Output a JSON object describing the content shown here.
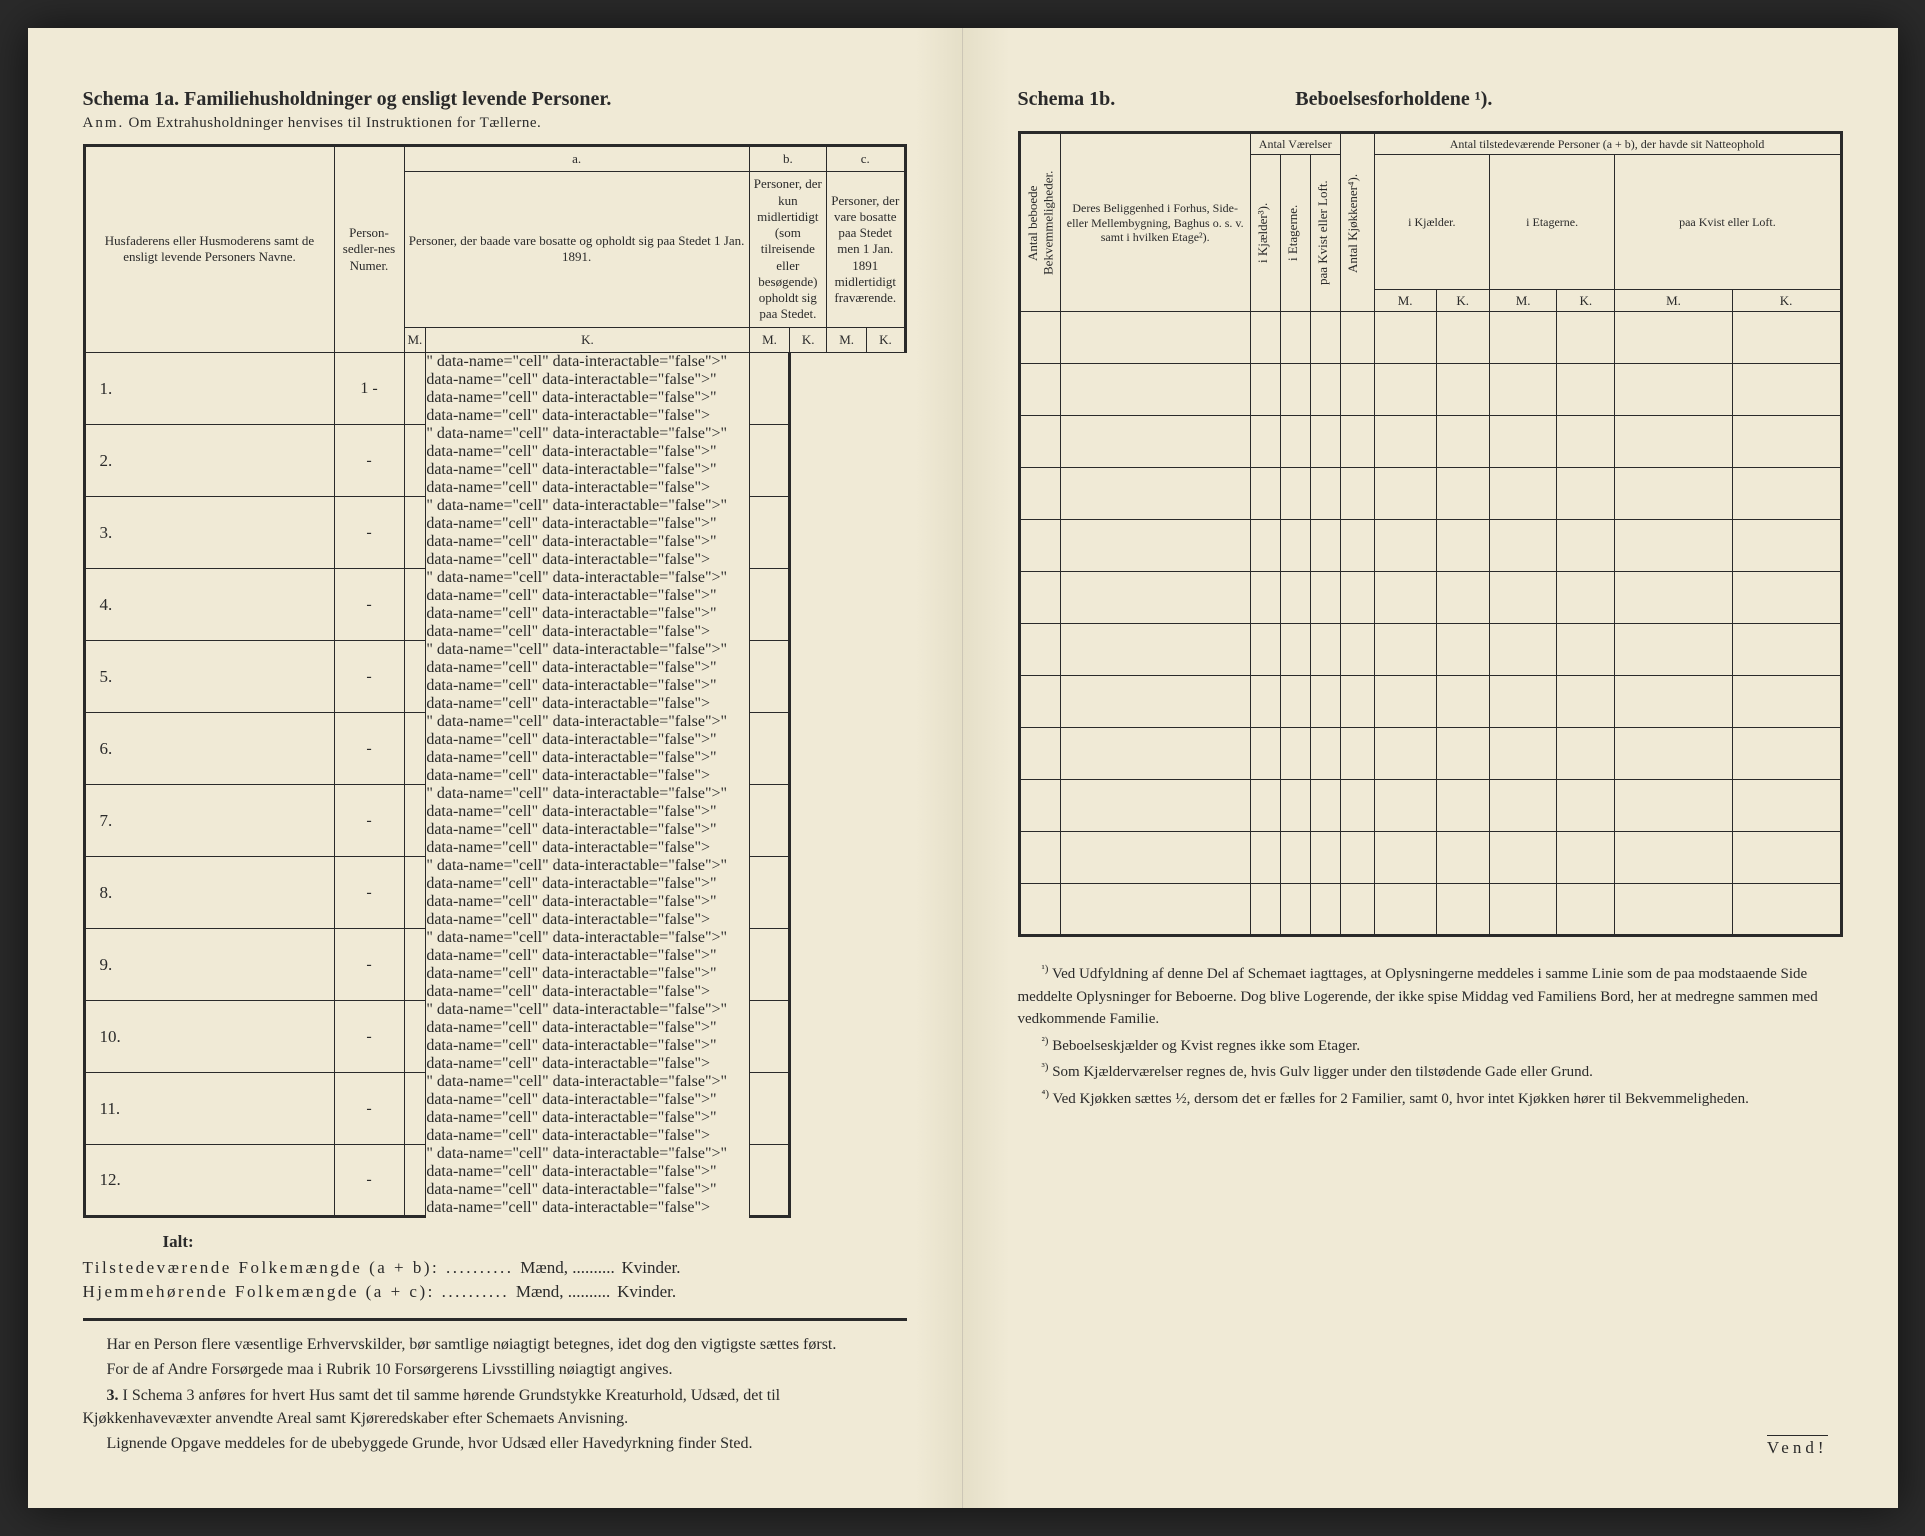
{
  "left": {
    "title": "Schema 1a.   Familiehusholdninger og ensligt levende Personer.",
    "note_label": "Anm.",
    "note": "Om Extrahusholdninger henvises til Instruktionen for Tællerne.",
    "col_names": "Husfaderens eller Husmoderens samt de ensligt levende Personers Navne.",
    "col_numer": "Person-sedler-nes Numer.",
    "abc": {
      "a": "a.",
      "b": "b.",
      "c": "c.",
      "a_text": "Personer, der baade vare bosatte og opholdt sig paa Stedet 1 Jan. 1891.",
      "b_text": "Personer, der kun midlertidigt (som tilreisende eller besøgende) opholdt sig paa Stedet.",
      "c_text": "Personer, der vare bosatte paa Stedet men 1 Jan. 1891 midlertidigt fraværende."
    },
    "M": "M.",
    "K": "K.",
    "rows": [
      "1.",
      "2.",
      "3.",
      "4.",
      "5.",
      "6.",
      "7.",
      "8.",
      "9.",
      "10.",
      "11.",
      "12."
    ],
    "first_numer": "1 -",
    "dash": "-",
    "ialt_label": "Ialt:",
    "ialt_line1_a": "Tilstedeværende Folkemængde (a + b): ..........",
    "ialt_line1_b": "Mænd, ..........",
    "ialt_line1_c": "Kvinder.",
    "ialt_line2_a": "Hjemmehørende Folkemængde (a + c): ..........",
    "ialt_line2_b": "Mænd, ..........",
    "ialt_line2_c": "Kvinder.",
    "foot_p1": "Har en Person flere væsentlige Erhvervskilder, bør samtlige nøiagtigt betegnes, idet dog den vigtigste sættes først.",
    "foot_p2": "For de af Andre Forsørgede maa i Rubrik 10 Forsørgerens Livsstilling nøiagtigt angives.",
    "foot_p3_num": "3.",
    "foot_p3": "I Schema 3 anføres for hvert Hus samt det til samme hørende Grundstykke Kreaturhold, Udsæd, det til Kjøkkenhavevæxter anvendte Areal samt Kjøreredskaber efter Schemaets Anvisning.",
    "foot_p4": "Lignende Opgave meddeles for de ubebyggede Grunde, hvor Udsæd eller Havedyrkning finder Sted."
  },
  "right": {
    "title_a": "Schema 1b.",
    "title_b": "Beboelsesforholdene ¹).",
    "col_vert1": "Antal beboede Bekvemmeligheder.",
    "col_belig": "Deres Beliggenhed i Forhus, Side- eller Mellembygning, Baghus o. s. v. samt i hvilken Etage²).",
    "col_antal_vaer": "Antal Værelser",
    "col_vert_kj": "i Kjælder³).",
    "col_vert_et": "i Etagerne.",
    "col_vert_kvist": "paa Kvist eller Loft.",
    "col_vert_kjok": "Antal Kjøkkener⁴).",
    "col_natte": "Antal tilstedeværende Personer (a + b), der havde sit Natteophold",
    "col_natte_kj": "i Kjælder.",
    "col_natte_et": "i Etagerne.",
    "col_natte_kvist": "paa Kvist eller Loft.",
    "M": "M.",
    "K": "K.",
    "num_rows": 12,
    "fn1_sup": "¹)",
    "fn1": "Ved Udfyldning af denne Del af Schemaet iagttages, at Oplysningerne meddeles i samme Linie som de paa modstaaende Side meddelte Oplysninger for Beboerne. Dog blive Logerende, der ikke spise Middag ved Familiens Bord, her at medregne sammen med vedkommende Familie.",
    "fn2_sup": "²)",
    "fn2": "Beboelseskjælder og Kvist regnes ikke som Etager.",
    "fn3_sup": "³)",
    "fn3": "Som Kjælderværelser regnes de, hvis Gulv ligger under den tilstødende Gade eller Grund.",
    "fn4_sup": "⁴)",
    "fn4": "Ved Kjøkken sættes ½, dersom det er fælles for 2 Familier, samt 0, hvor intet Kjøkken hører til Bekvemmeligheden.",
    "vend": "Vend!"
  }
}
